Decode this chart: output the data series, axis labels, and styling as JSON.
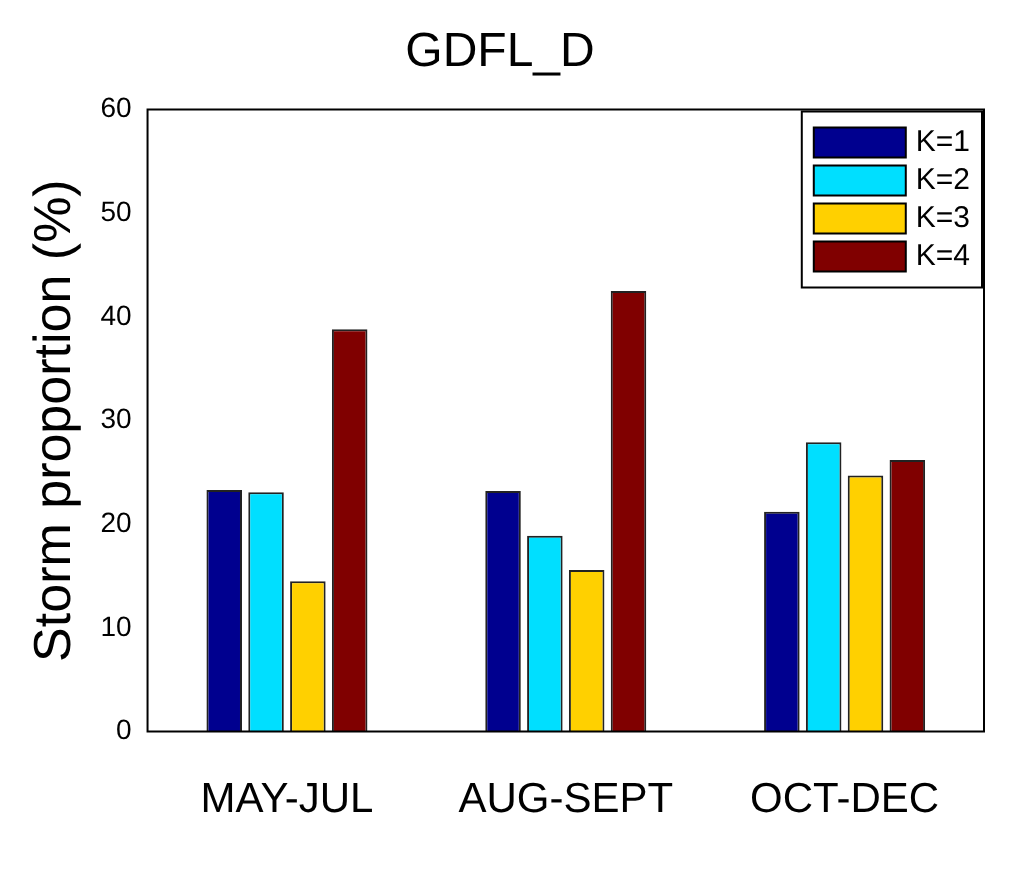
{
  "chart_data": {
    "type": "bar",
    "title": "GDFL_D",
    "ylabel": "Storm proportion (%)",
    "categories": [
      "MAY-JUL",
      "AUG-SEPT",
      "OCT-DEC"
    ],
    "series": [
      {
        "name": "K=1",
        "color": "#00008f",
        "values": [
          23.3,
          23.2,
          21.2
        ]
      },
      {
        "name": "K=2",
        "color": "#00dfff",
        "values": [
          23.1,
          18.9,
          27.9
        ]
      },
      {
        "name": "K=3",
        "color": "#ffd000",
        "values": [
          14.5,
          15.6,
          24.7
        ]
      },
      {
        "name": "K=4",
        "color": "#800000",
        "values": [
          38.8,
          42.5,
          26.2
        ]
      }
    ],
    "ylim": [
      0,
      60
    ],
    "yticks": [
      0,
      10,
      20,
      30,
      40,
      50,
      60
    ],
    "grid": false,
    "legend": "top right"
  }
}
